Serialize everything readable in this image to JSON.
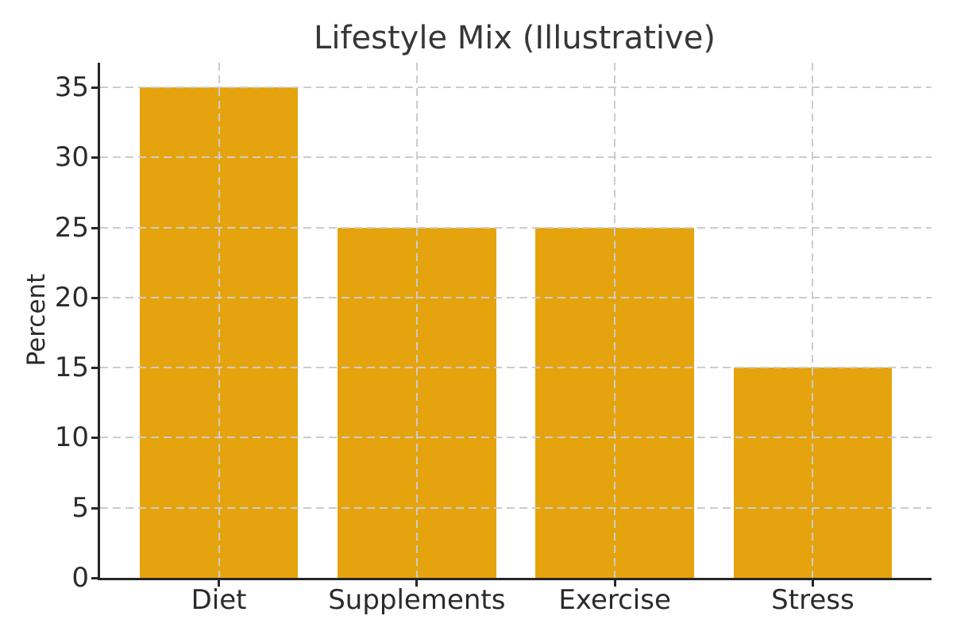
{
  "chart_data": {
    "type": "bar",
    "title": "Lifestyle Mix (Illustrative)",
    "xlabel": "",
    "ylabel": "Percent",
    "categories": [
      "Diet",
      "Supplements",
      "Exercise",
      "Stress"
    ],
    "values": [
      35,
      25,
      25,
      15
    ],
    "yticks": [
      0,
      5,
      10,
      15,
      20,
      25,
      30,
      35
    ],
    "ylim": [
      0,
      36.75
    ],
    "xlim_pad": 0.6,
    "bar_width_fraction": 0.8,
    "grid": "both-dashed-above-bars",
    "legend_position": "none",
    "colors": {
      "bar": "#E5A40E",
      "grid": "#cccccc",
      "axis": "#262626",
      "text": "#2b2b2b",
      "title": "#363636",
      "background": "#ffffff"
    }
  }
}
